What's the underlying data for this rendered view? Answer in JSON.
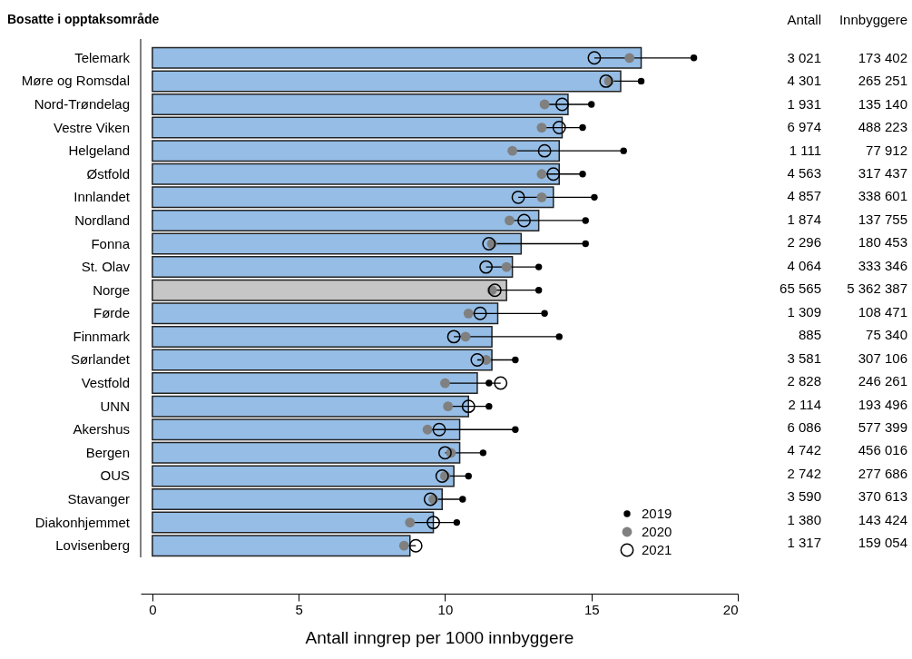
{
  "chart_data": {
    "type": "bar",
    "orientation": "horizontal",
    "ylabel": "Bosatte i opptaksområde",
    "xlabel": "Antall inngrep per 1000 innbyggere",
    "categories": [
      "Telemark",
      "Møre og Romsdal",
      "Nord-Trøndelag",
      "Vestre Viken",
      "Helgeland",
      "Østfold",
      "Innlandet",
      "Nordland",
      "Fonna",
      "St. Olav",
      "Norge",
      "Førde",
      "Finnmark",
      "Sørlandet",
      "Vestfold",
      "UNN",
      "Akershus",
      "Bergen",
      "OUS",
      "Stavanger",
      "Diakonhjemmet",
      "Lovisenberg"
    ],
    "xlim": [
      -0.4,
      20
    ],
    "xticks": [
      0,
      5,
      10,
      15,
      20
    ],
    "legend": "bottom right",
    "marker": "circle",
    "series": [
      {
        "values": [
          16.7,
          16.0,
          14.2,
          14.0,
          13.9,
          13.9,
          13.7,
          13.2,
          12.6,
          12.3,
          12.1,
          11.8,
          11.6,
          11.6,
          11.1,
          10.8,
          10.5,
          10.5,
          10.3,
          9.9,
          9.6,
          8.8
        ],
        "colors": [
          "#95bde6",
          "#95bde6",
          "#95bde6",
          "#95bde6",
          "#95bde6",
          "#95bde6",
          "#95bde6",
          "#95bde6",
          "#95bde6",
          "#95bde6",
          "#c6c6c6",
          "#95bde6",
          "#95bde6",
          "#95bde6",
          "#95bde6",
          "#95bde6",
          "#95bde6",
          "#95bde6",
          "#95bde6",
          "#95bde6",
          "#95bde6",
          "#95bde6"
        ]
      },
      {
        "type": "scatter",
        "name": "2019",
        "color": "#000000",
        "values": [
          18.5,
          16.7,
          15.0,
          14.7,
          16.1,
          14.7,
          15.1,
          14.8,
          14.8,
          13.2,
          13.2,
          13.4,
          13.9,
          12.4,
          11.5,
          11.5,
          12.4,
          11.3,
          10.8,
          10.6,
          10.4,
          null
        ]
      },
      {
        "type": "scatter",
        "name": "2020",
        "color": "#808080",
        "values": [
          16.3,
          15.6,
          13.4,
          13.3,
          12.3,
          13.3,
          13.3,
          12.2,
          11.6,
          12.1,
          11.6,
          10.8,
          10.7,
          11.4,
          10.0,
          10.1,
          9.4,
          10.2,
          10.0,
          9.6,
          8.8,
          8.6
        ]
      },
      {
        "type": "scatter",
        "name": "2021",
        "color": "#000000",
        "values": [
          15.1,
          15.5,
          14.0,
          13.9,
          13.4,
          13.7,
          12.5,
          12.7,
          11.5,
          11.4,
          11.7,
          11.2,
          10.3,
          11.1,
          11.9,
          10.8,
          9.8,
          10.0,
          9.9,
          9.5,
          9.6,
          9.0
        ]
      }
    ],
    "annotations": [
      "Antall",
      "Innbyggere",
      "3 021",
      "173 402",
      "4 301",
      "265 251",
      "1 931",
      "135 140",
      "6 974",
      "488 223",
      "1 111",
      "77 912",
      "4 563",
      "317 437",
      "4 857",
      "338 601",
      "1 874",
      "137 755",
      "2 296",
      "180 453",
      "4 064",
      "333 346",
      "65 565",
      "5 362 387",
      "1 309",
      "108 471",
      "885",
      "75 340",
      "3 581",
      "307 106",
      "2 828",
      "246 261",
      "2 114",
      "193 496",
      "6 086",
      "577 399",
      "4 742",
      "456 016",
      "2 742",
      "277 686",
      "3 590",
      "370 613",
      "1 380",
      "143 424",
      "1 317",
      "159 054"
    ]
  }
}
